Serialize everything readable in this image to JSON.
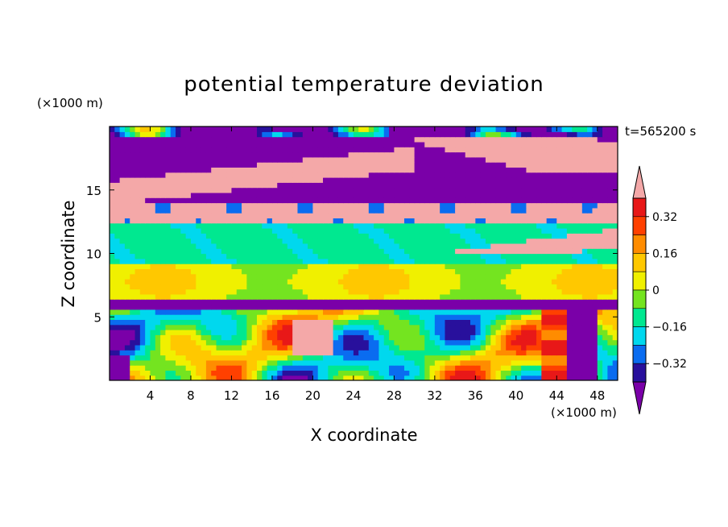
{
  "chart_data": {
    "type": "heatmap",
    "title": "potential temperature deviation",
    "time_label": "t=565200 s",
    "xlabel": "X coordinate",
    "ylabel": "Z coordinate",
    "x_unit": "(×1000 m)",
    "y_unit": "(×1000 m)",
    "xlim": [
      0,
      50
    ],
    "ylim": [
      0,
      20
    ],
    "x_ticks": [
      4,
      8,
      12,
      16,
      20,
      24,
      28,
      32,
      36,
      40,
      44,
      48
    ],
    "y_ticks": [
      5,
      10,
      15
    ],
    "colorbar": {
      "levels": [
        -0.4,
        -0.32,
        -0.24,
        -0.16,
        -0.08,
        0,
        0.08,
        0.16,
        0.24,
        0.32,
        0.4
      ],
      "tick_labels": [
        "0.32",
        "0.16",
        "0",
        "−0.16",
        "−0.32"
      ],
      "tick_values": [
        0.32,
        0.16,
        0,
        -0.16,
        -0.32
      ],
      "colors": [
        "#7a00a8",
        "#28109c",
        "#0a6cf0",
        "#00d8ee",
        "#00e890",
        "#74e420",
        "#f0f000",
        "#ffc800",
        "#ff8c00",
        "#ff4000",
        "#e81818",
        "#f4a8a8"
      ],
      "extend": "both"
    },
    "field_bands": [
      {
        "z_range": [
          19.3,
          20.0
        ],
        "value": -0.45
      },
      {
        "z_range": [
          12.0,
          14.0
        ],
        "value": 0.45
      },
      {
        "z_range": [
          9.0,
          12.0
        ],
        "value": -0.13
      },
      {
        "z_range": [
          6.5,
          9.0
        ],
        "value": 0.02
      },
      {
        "z_range": [
          5.5,
          6.2
        ],
        "value": -0.45
      },
      {
        "z_range": [
          0.0,
          5.5
        ],
        "value": -0.05
      }
    ]
  }
}
